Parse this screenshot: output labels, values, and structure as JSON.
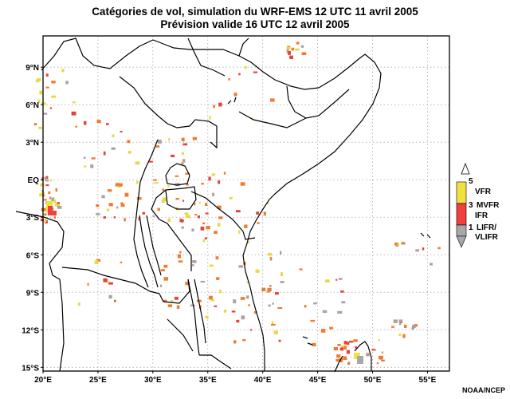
{
  "title_line1": "Catégories de vol, simulation du WRF-EMS 12 UTC 11 avril 2005",
  "title_line2": "Prévision valide 16 UTC 12 avril 2005",
  "credit": "NOAA/NCEP",
  "map": {
    "lon_range": [
      20,
      57
    ],
    "lat_range": [
      -15.3,
      11.5
    ],
    "lat_ticks": [
      {
        "value": 9,
        "label": "9°N"
      },
      {
        "value": 6,
        "label": "6°N"
      },
      {
        "value": 3,
        "label": "3°N"
      },
      {
        "value": 0,
        "label": "EQ"
      },
      {
        "value": -3,
        "label": "3°S"
      },
      {
        "value": -6,
        "label": "6°S"
      },
      {
        "value": -9,
        "label": "9°S"
      },
      {
        "value": -12,
        "label": "12°S"
      },
      {
        "value": -15,
        "label": "15°S"
      }
    ],
    "lon_ticks": [
      {
        "value": 20,
        "label": "20°E"
      },
      {
        "value": 25,
        "label": "25°E"
      },
      {
        "value": 30,
        "label": "30°E"
      },
      {
        "value": 35,
        "label": "35°E"
      },
      {
        "value": 40,
        "label": "40°E"
      },
      {
        "value": 45,
        "label": "45°E"
      },
      {
        "value": 50,
        "label": "50°E"
      },
      {
        "value": 55,
        "label": "55°E"
      }
    ],
    "grid": "dotted"
  },
  "legend": {
    "numbers": [
      "5",
      "3",
      "1"
    ],
    "labels": [
      "VFR",
      "MVFR",
      "IFR",
      "LIFR/",
      "VLIFR"
    ],
    "colors": {
      "vfr": "#f0e040",
      "ifr": "#f04040",
      "lifr": "#a8a8a8"
    }
  },
  "colors": {
    "coast": "#000000",
    "grid": "#aaaaaa",
    "speck_yellow": "#e8d84a",
    "speck_orange": "#f07a30",
    "speck_red": "#e8403a",
    "speck_gray": "#b0a0a0"
  }
}
